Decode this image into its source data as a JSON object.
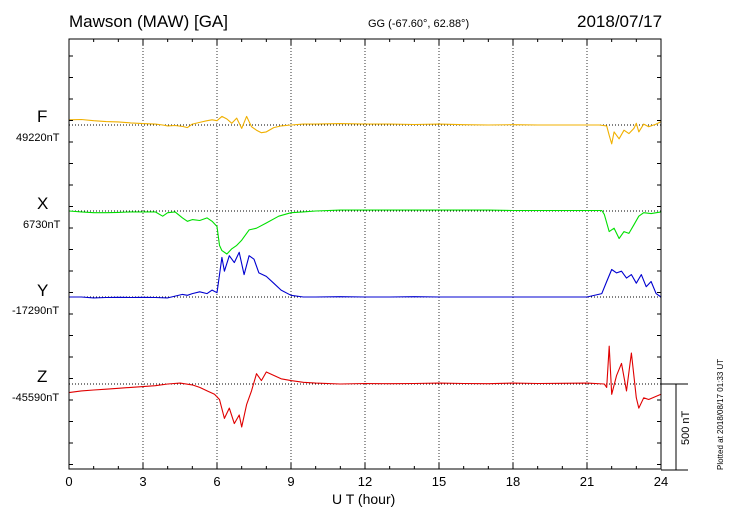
{
  "header": {
    "station": "Mawson (MAW)  [GA]",
    "coords": "GG (-67.60°,  62.88°)",
    "date": "2018/07/17"
  },
  "footer": {
    "xlabel": "U T (hour)",
    "plotted": "Plotted at 2018/08/17 01:33 UT",
    "scale": "500 nT"
  },
  "chart_data": {
    "type": "line",
    "title": "Mawson (MAW)  [GA]",
    "xlabel": "U T (hour)",
    "ylabel": "",
    "xlim": [
      0,
      24
    ],
    "xticks": [
      "0",
      "3",
      "6",
      "9",
      "12",
      "15",
      "18",
      "21",
      "24"
    ],
    "scale_bar_nT": 500,
    "grid": true,
    "colors": {
      "F": "#f0b000",
      "X": "#00e000",
      "Y": "#0000d0",
      "Z": "#e00000"
    },
    "series": [
      {
        "name": "F",
        "baseline_label": "49220nT",
        "x": [
          0,
          0.5,
          1,
          1.5,
          2,
          2.5,
          3,
          3.5,
          3.8,
          4,
          4.3,
          4.6,
          4.8,
          5,
          5.3,
          5.6,
          5.8,
          6,
          6.2,
          6.4,
          6.6,
          6.8,
          7,
          7.2,
          7.4,
          7.6,
          7.8,
          8,
          8.3,
          8.6,
          9,
          9.5,
          10,
          11,
          12,
          13,
          14,
          15,
          16,
          17,
          18,
          19,
          20,
          21,
          21.5,
          21.8,
          21.9,
          22,
          22.1,
          22.3,
          22.5,
          22.7,
          22.9,
          23,
          23.1,
          23.3,
          23.5,
          23.8,
          24
        ],
        "values": [
          30,
          32,
          25,
          20,
          18,
          12,
          8,
          5,
          0,
          -5,
          -3,
          -8,
          -15,
          5,
          15,
          25,
          30,
          25,
          50,
          35,
          10,
          40,
          -20,
          50,
          -10,
          -30,
          -45,
          -40,
          -15,
          -5,
          0,
          5,
          5,
          8,
          5,
          5,
          3,
          5,
          2,
          0,
          2,
          0,
          0,
          0,
          0,
          -5,
          -60,
          -110,
          -40,
          -80,
          -30,
          -50,
          -20,
          10,
          -40,
          5,
          -10,
          5,
          20
        ]
      },
      {
        "name": "X",
        "baseline_label": "6730nT",
        "x": [
          0,
          0.5,
          1,
          1.5,
          2,
          2.5,
          3,
          3.5,
          3.8,
          4,
          4.3,
          4.6,
          4.8,
          5,
          5.3,
          5.6,
          5.8,
          6,
          6.1,
          6.2,
          6.4,
          6.6,
          6.8,
          7,
          7.3,
          7.6,
          8,
          8.5,
          9,
          9.5,
          10,
          11,
          12,
          13,
          14,
          15,
          16,
          17,
          18,
          19,
          20,
          21,
          21.6,
          21.7,
          21.9,
          22.1,
          22.3,
          22.5,
          22.7,
          22.9,
          23.1,
          23.3,
          23.6,
          24
        ],
        "values": [
          0,
          -5,
          -10,
          -10,
          -8,
          -5,
          -5,
          -5,
          -30,
          -10,
          -5,
          -40,
          -60,
          -50,
          -55,
          -40,
          -60,
          -90,
          -200,
          -230,
          -250,
          -220,
          -200,
          -170,
          -110,
          -100,
          -70,
          -30,
          -10,
          -5,
          0,
          5,
          5,
          5,
          5,
          5,
          5,
          5,
          3,
          3,
          3,
          3,
          3,
          -20,
          -120,
          -100,
          -160,
          -120,
          -130,
          -80,
          -30,
          -10,
          -15,
          -5
        ]
      },
      {
        "name": "Y",
        "baseline_label": "-17290nT",
        "x": [
          0,
          0.5,
          1,
          1.5,
          2,
          2.5,
          3,
          3.5,
          4,
          4.3,
          4.6,
          4.8,
          5,
          5.3,
          5.6,
          5.8,
          6,
          6.2,
          6.3,
          6.5,
          6.7,
          6.9,
          7.1,
          7.3,
          7.5,
          7.7,
          8,
          8.3,
          8.6,
          9,
          9.5,
          10,
          11,
          12,
          13,
          14,
          15,
          16,
          17,
          18,
          19,
          20,
          21,
          21.6,
          21.8,
          22,
          22.2,
          22.4,
          22.6,
          22.8,
          23,
          23.2,
          23.4,
          23.6,
          23.8,
          24
        ],
        "values": [
          0,
          0,
          -5,
          -3,
          -2,
          -3,
          -2,
          -3,
          -5,
          5,
          15,
          10,
          20,
          30,
          20,
          40,
          25,
          230,
          150,
          240,
          200,
          260,
          130,
          240,
          220,
          140,
          120,
          80,
          40,
          10,
          0,
          0,
          2,
          0,
          0,
          2,
          0,
          0,
          0,
          0,
          0,
          0,
          0,
          20,
          90,
          160,
          140,
          150,
          110,
          130,
          80,
          130,
          60,
          90,
          20,
          0
        ]
      },
      {
        "name": "Z",
        "baseline_label": "-45590nT",
        "x": [
          0,
          0.5,
          1,
          1.5,
          2,
          2.5,
          3,
          3.5,
          4,
          4.5,
          5,
          5.3,
          5.6,
          5.9,
          6.1,
          6.3,
          6.5,
          6.7,
          6.9,
          7,
          7.2,
          7.4,
          7.6,
          7.8,
          8,
          8.3,
          8.6,
          9,
          9.5,
          10,
          11,
          12,
          13,
          14,
          15,
          16,
          17,
          18,
          19,
          20,
          21,
          21.7,
          21.8,
          21.9,
          22,
          22.2,
          22.4,
          22.6,
          22.8,
          23,
          23.1,
          23.3,
          23.5,
          24
        ],
        "values": [
          -50,
          -40,
          -35,
          -30,
          -25,
          -20,
          -15,
          -10,
          0,
          5,
          -5,
          -20,
          -40,
          -60,
          -90,
          -200,
          -140,
          -230,
          -180,
          -250,
          -120,
          -40,
          60,
          20,
          70,
          50,
          30,
          20,
          10,
          5,
          0,
          3,
          2,
          3,
          5,
          3,
          2,
          5,
          3,
          4,
          5,
          0,
          -20,
          220,
          -60,
          50,
          120,
          -40,
          180,
          -80,
          -140,
          -80,
          -90,
          -60
        ]
      }
    ]
  }
}
